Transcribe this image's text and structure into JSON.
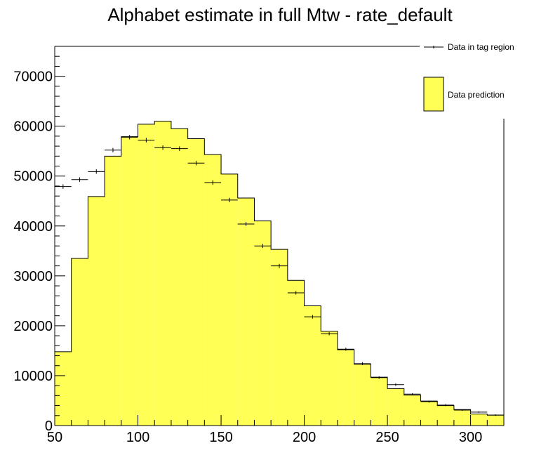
{
  "chart_data": {
    "type": "bar",
    "title": "Alphabet estimate in full Mtw - rate_default",
    "xlabel": "",
    "ylabel": "",
    "xlim": [
      50,
      320
    ],
    "ylim": [
      0,
      76000
    ],
    "bin_width": 10,
    "x_ticks": [
      50,
      100,
      150,
      200,
      250,
      300
    ],
    "y_ticks": [
      0,
      10000,
      20000,
      30000,
      40000,
      50000,
      60000,
      70000
    ],
    "bin_edges": [
      50,
      60,
      70,
      80,
      90,
      100,
      110,
      120,
      130,
      140,
      150,
      160,
      170,
      180,
      190,
      200,
      210,
      220,
      230,
      240,
      250,
      260,
      270,
      280,
      290,
      300,
      310,
      320
    ],
    "series": [
      {
        "name": "Data prediction",
        "style": "filled-histogram",
        "color": "#ffff55",
        "values": [
          14800,
          33500,
          45900,
          54000,
          57900,
          60400,
          61000,
          59500,
          57500,
          54300,
          50400,
          45600,
          41000,
          35300,
          29100,
          24000,
          18900,
          15200,
          12300,
          9700,
          7400,
          6100,
          4900,
          4000,
          3200,
          2300,
          2100
        ]
      },
      {
        "name": "Data in tag region",
        "style": "error-bars",
        "color": "#000000",
        "values": [
          47900,
          49300,
          50900,
          55200,
          57800,
          57200,
          55700,
          55500,
          52600,
          48700,
          45200,
          40400,
          36000,
          32000,
          26600,
          21800,
          18400,
          15300,
          12400,
          9600,
          8200,
          6300,
          4800,
          4100,
          3100,
          2700,
          2100
        ],
        "errors": [
          450,
          450,
          450,
          450,
          450,
          450,
          450,
          450,
          450,
          450,
          450,
          400,
          400,
          400,
          350,
          350,
          300,
          300,
          300,
          250,
          250,
          200,
          200,
          200,
          150,
          150,
          150
        ]
      }
    ],
    "legend": {
      "placement": "top-right"
    }
  }
}
